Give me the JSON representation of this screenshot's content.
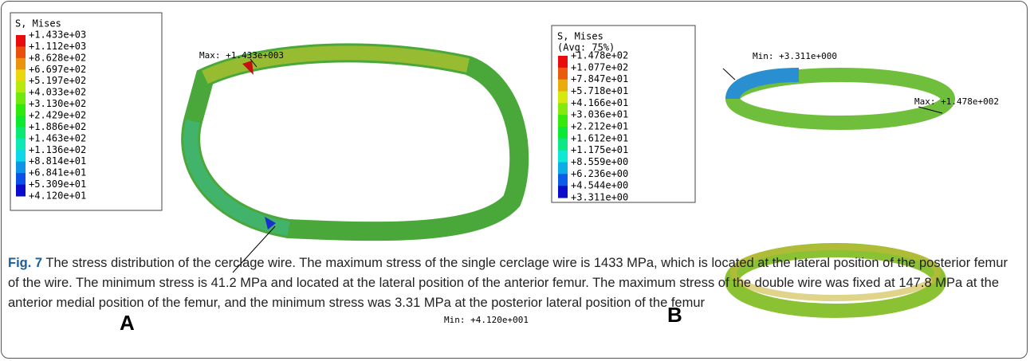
{
  "panels": [
    {
      "letter": "A",
      "legend": {
        "title": "S, Mises",
        "values": [
          "+1.433e+03",
          "+1.112e+03",
          "+8.628e+02",
          "+6.697e+02",
          "+5.197e+02",
          "+4.033e+02",
          "+3.130e+02",
          "+2.429e+02",
          "+1.886e+02",
          "+1.463e+02",
          "+1.136e+02",
          "+8.814e+01",
          "+6.841e+01",
          "+5.309e+01",
          "+4.120e+01"
        ]
      },
      "max_label": "Max: +1.433e+003",
      "min_label": "Min: +4.120e+001"
    },
    {
      "letter": "B",
      "legend": {
        "title": "S, Mises",
        "subtitle": "(Avg: 75%)",
        "values": [
          "+1.478e+02",
          "+1.077e+02",
          "+7.847e+01",
          "+5.718e+01",
          "+4.166e+01",
          "+3.036e+01",
          "+2.212e+01",
          "+1.612e+01",
          "+1.175e+01",
          "+8.559e+00",
          "+6.236e+00",
          "+4.544e+00",
          "+3.311e+00"
        ]
      },
      "max_label": "Max: +1.478e+002",
      "min_label": "Min: +3.311e+000"
    }
  ],
  "caption": {
    "label": "Fig. 7",
    "text": " The stress distribution of the cerclage wire. The maximum stress of the single cerclage wire is 1433 MPa, which is located at the lateral position of the posterior femur of the wire. The minimum stress is 41.2 MPa and located at the lateral position of the anterior femur. The maximum stress of the double wire was fixed at 147.8 MPa at the anterior medial position of the femur, and the minimum stress was 3.31 MPa at the posterior lateral position of the femur"
  }
}
